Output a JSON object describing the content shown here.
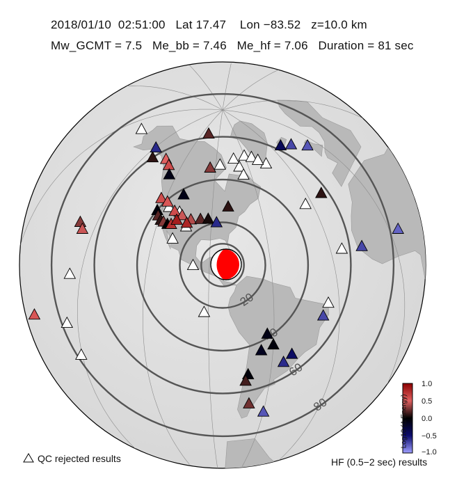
{
  "header": {
    "line1": "2018/01/10  02:51:00   Lat 17.47    Lon −83.52   z=10.0 km",
    "line2": "Mw_GCMT = 7.5   Me_bb = 7.46   Me_hf = 7.06   Duration = 81 sec"
  },
  "map": {
    "distance_rings": [
      "20",
      "40",
      "60",
      "80"
    ],
    "beachball_colors": [
      "#ff0000",
      "#ffffff"
    ],
    "stations": [
      {
        "lon": -149.5,
        "lat": 61.2,
        "value": -0.6
      },
      {
        "lon": -135.2,
        "lat": 60.1,
        "value": 0.5
      },
      {
        "lon": -130.0,
        "lat": 58.5,
        "value": 0.6
      },
      {
        "lon": -145.0,
        "lat": 57.5,
        "value": 0.1
      },
      {
        "lon": -125.5,
        "lat": 55.0,
        "value": -0.1
      },
      {
        "lon": -110.0,
        "lat": 48.5,
        "value": -0.1
      },
      {
        "lon": -123.0,
        "lat": 44.2,
        "value": 0.6
      },
      {
        "lon": -118.5,
        "lat": 43.6,
        "value": 0.55
      },
      {
        "lon": -112.5,
        "lat": 40.4,
        "value": 0.6
      },
      {
        "lon": -107.5,
        "lat": 39.2,
        "value": 0.45
      },
      {
        "lon": -102.0,
        "lat": 37.9,
        "value": 0.4
      },
      {
        "lon": -96.5,
        "lat": 38.6,
        "value": 0.2
      },
      {
        "lon": -92.0,
        "lat": 39.0,
        "value": 0.05
      },
      {
        "lon": -87.0,
        "lat": 37.5,
        "value": -0.6
      },
      {
        "lon": -122.5,
        "lat": 38.7,
        "value": -0.05
      },
      {
        "lon": -121.0,
        "lat": 36.6,
        "value": 0.2
      },
      {
        "lon": -118.8,
        "lat": 35.0,
        "value": 0.1
      },
      {
        "lon": -117.0,
        "lat": 34.6,
        "value": 0.3
      },
      {
        "lon": -114.5,
        "lat": 34.0,
        "value": 0.0
      },
      {
        "lon": -112.5,
        "lat": 34.3,
        "value": 0.75
      },
      {
        "lon": -104.0,
        "lat": 36.1,
        "value": 0.8
      },
      {
        "lon": -110.0,
        "lat": 36.7,
        "value": 0.85
      },
      {
        "lon": -80.0,
        "lat": 44.9,
        "value": 0.1
      },
      {
        "lon": -95.0,
        "lat": 62.8,
        "value": 0.3
      },
      {
        "lon": -110.0,
        "lat": 78.0,
        "value": 0.2
      },
      {
        "lon": -21.5,
        "lat": 64.1,
        "value": -0.4
      },
      {
        "lon": -14.0,
        "lat": 61.5,
        "value": -0.7
      },
      {
        "lon": -6.0,
        "lat": 56.5,
        "value": -0.75
      },
      {
        "lon": -22.0,
        "lat": 39.5,
        "value": 0.1
      },
      {
        "lon": -15.0,
        "lat": 14.0,
        "value": -0.7
      },
      {
        "lon": 4.0,
        "lat": 13.0,
        "value": -0.8
      },
      {
        "lon": -157.9,
        "lat": 21.4,
        "value": 0.3
      },
      {
        "lon": -155.5,
        "lat": 19.6,
        "value": 0.45
      },
      {
        "lon": -170.0,
        "lat": -14.3,
        "value": 0.55
      },
      {
        "lon": -37.5,
        "lat": -9.0,
        "value": -0.7
      },
      {
        "lon": -63.0,
        "lat": -15.0,
        "value": -0.1
      },
      {
        "lon": -60.0,
        "lat": -20.0,
        "value": -0.05
      },
      {
        "lon": -65.5,
        "lat": -22.5,
        "value": -0.15
      },
      {
        "lon": -51.0,
        "lat": -24.5,
        "value": -0.45
      },
      {
        "lon": -54.5,
        "lat": -28.0,
        "value": -0.6
      },
      {
        "lon": -71.0,
        "lat": -33.5,
        "value": -0.05
      },
      {
        "lon": -72.0,
        "lat": -36.5,
        "value": 0.15
      },
      {
        "lon": -69.0,
        "lat": -47.0,
        "value": 0.25
      },
      {
        "lon": -60.0,
        "lat": -50.5,
        "value": -0.75
      }
    ],
    "rejected_stations": [
      {
        "lon": -172.0,
        "lat": 60.5
      },
      {
        "lon": -86.0,
        "lat": 64.5
      },
      {
        "lon": -68.0,
        "lat": 63.0
      },
      {
        "lon": -60.0,
        "lat": 67.5
      },
      {
        "lon": -72.0,
        "lat": 67.0
      },
      {
        "lon": -53.5,
        "lat": 66.0
      },
      {
        "lon": -44.0,
        "lat": 61.0
      },
      {
        "lon": -66.0,
        "lat": 59.0
      },
      {
        "lon": -49.0,
        "lat": 63.8
      },
      {
        "lon": -116.5,
        "lat": 41.5
      },
      {
        "lon": -109.5,
        "lat": 40.5
      },
      {
        "lon": -104.0,
        "lat": 34.4
      },
      {
        "lon": -110.0,
        "lat": 28.0
      },
      {
        "lon": -98.0,
        "lat": 17.0
      },
      {
        "lon": -33.5,
        "lat": 38.5
      },
      {
        "lon": -24.5,
        "lat": 16.0
      },
      {
        "lon": 14.0,
        "lat": -4.0
      },
      {
        "lon": -35.0,
        "lat": -4.0
      },
      {
        "lon": -155.0,
        "lat": 2.5
      },
      {
        "lon": -155.0,
        "lat": -15.0
      },
      {
        "lon": -150.5,
        "lat": -26.0
      },
      {
        "lon": -92.0,
        "lat": -4.5
      }
    ]
  },
  "legend": {
    "qc_label": "QC rejected results",
    "hf_label": "HF (0.5−2 sec) results"
  },
  "colorbar": {
    "title": "Log10 (Δ Energy)",
    "ticks": [
      "1.0",
      "0.5",
      "0.0",
      "−0.5",
      "−1.0"
    ],
    "colors": [
      "#8b0000",
      "#e06060",
      "#000000",
      "#0c0c6e",
      "#9f9fff"
    ]
  }
}
